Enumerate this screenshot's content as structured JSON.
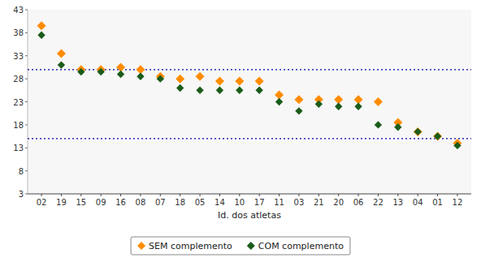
{
  "chart_data": {
    "type": "scatter",
    "x_label": "Id. dos atletas",
    "categories": [
      "02",
      "19",
      "15",
      "09",
      "16",
      "08",
      "07",
      "18",
      "05",
      "14",
      "10",
      "17",
      "11",
      "03",
      "21",
      "20",
      "06",
      "22",
      "13",
      "04",
      "01",
      "12"
    ],
    "series": [
      {
        "name": "SEM complemento",
        "color": "#FF8C00",
        "marker": "diamond",
        "values": [
          39.5,
          33.5,
          30.0,
          30.0,
          30.5,
          30.0,
          28.5,
          28.0,
          28.5,
          27.5,
          27.5,
          27.5,
          24.5,
          23.5,
          23.5,
          23.5,
          23.5,
          23.0,
          18.5,
          16.5,
          15.5,
          14.0
        ]
      },
      {
        "name": "COM complemento",
        "color": "#1a5c1a",
        "marker": "diamond",
        "values": [
          37.5,
          31.0,
          29.5,
          29.5,
          29.0,
          28.5,
          28.0,
          26.0,
          25.5,
          25.5,
          25.5,
          25.5,
          23.0,
          21.0,
          22.5,
          22.0,
          22.0,
          18.0,
          17.5,
          16.5,
          15.5,
          13.5
        ]
      }
    ],
    "reference_lines": [
      {
        "value": 15.0,
        "color": "#0000AA",
        "line_style": "dotted"
      },
      {
        "value": 30.0,
        "color": "#0000AA",
        "line_style": "dotted"
      }
    ],
    "ylim": [
      3,
      43
    ],
    "yticks": [
      3,
      8,
      13,
      18,
      23,
      28,
      33,
      38,
      43
    ],
    "grid": false,
    "legend": "bottom"
  }
}
